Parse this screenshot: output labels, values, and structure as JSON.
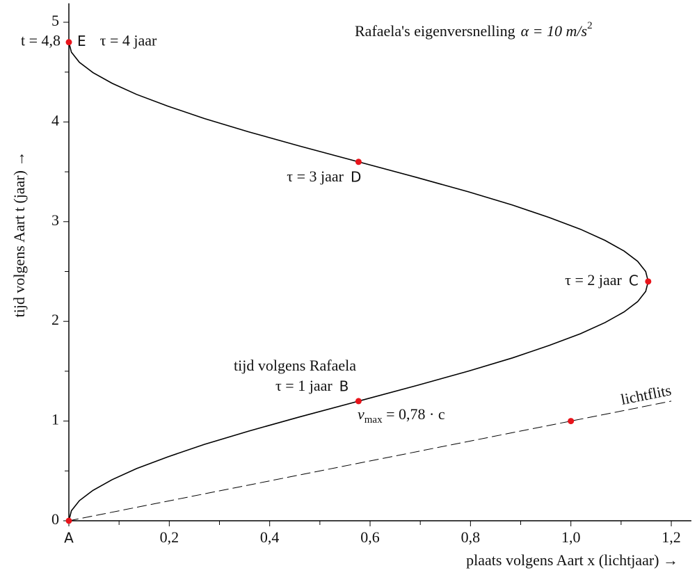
{
  "chart_data": {
    "type": "line",
    "title": "Rafaela's eigenversnelling",
    "title_math": "α = 10 m/s",
    "title_sup": "2",
    "x_label": "plaats volgens Aart  x  (lichtjaar) →",
    "y_label": "tijd volgens Aart  t  (jaar) →",
    "xlim": [
      0,
      1.24
    ],
    "ylim": [
      0,
      5.19
    ],
    "xticks": [
      {
        "value": 0,
        "label": "A"
      },
      {
        "value": 0.2,
        "label": "0,2"
      },
      {
        "value": 0.4,
        "label": "0,4"
      },
      {
        "value": 0.6,
        "label": "0,6"
      },
      {
        "value": 0.8,
        "label": "0,8"
      },
      {
        "value": 1.0,
        "label": "1,0"
      },
      {
        "value": 1.2,
        "label": "1,2"
      }
    ],
    "xminorticks": [
      0.1,
      0.3,
      0.5,
      0.7,
      0.9,
      1.1
    ],
    "yticks": [
      0,
      1,
      2,
      3,
      4,
      5
    ],
    "yminorticks": [
      0.5,
      1.5,
      2.5,
      3.5,
      4.5
    ],
    "series": [
      {
        "color": "#000000",
        "x": [
          0,
          0.005,
          0.021,
          0.048,
          0.086,
          0.135,
          0.197,
          0.27,
          0.358,
          0.46,
          0.577,
          0.694,
          0.796,
          0.884,
          0.957,
          1.019,
          1.068,
          1.106,
          1.133,
          1.149,
          1.154,
          1.149,
          1.133,
          1.106,
          1.068,
          1.019,
          0.957,
          0.884,
          0.796,
          0.694,
          0.577,
          0.46,
          0.358,
          0.27,
          0.197,
          0.135,
          0.086,
          0.048,
          0.021,
          0.005,
          0
        ],
        "values": [
          0,
          0.1,
          0.202,
          0.305,
          0.412,
          0.524,
          0.641,
          0.766,
          0.899,
          1.042,
          1.2,
          1.358,
          1.501,
          1.634,
          1.759,
          1.876,
          1.988,
          2.095,
          2.198,
          2.3,
          2.4,
          2.5,
          2.602,
          2.705,
          2.812,
          2.924,
          3.041,
          3.166,
          3.299,
          3.442,
          3.6,
          3.758,
          3.901,
          4.034,
          4.159,
          4.276,
          4.388,
          4.495,
          4.598,
          4.7,
          4.8
        ]
      },
      {
        "name": "lichtflits",
        "color": "#000000",
        "dashed": true,
        "x": [
          0,
          1.2
        ],
        "values": [
          0,
          1.2
        ]
      }
    ],
    "points": [
      {
        "x": 0,
        "y": 0
      },
      {
        "x": 0.577,
        "y": 1.2,
        "label": "B",
        "text": "τ = 1 jaar"
      },
      {
        "x": 1.154,
        "y": 2.4,
        "label": "C",
        "text": "τ = 2 jaar"
      },
      {
        "x": 0.577,
        "y": 3.6,
        "label": "D",
        "text": "τ = 3 jaar"
      },
      {
        "x": 0,
        "y": 4.8,
        "label": "E",
        "text": "τ = 4 jaar",
        "t_label": "t = 4,8"
      },
      {
        "x": 1,
        "y": 1
      }
    ],
    "point_color": "#e8141b",
    "annotation": "tijd volgens Rafaela",
    "vmax": {
      "symbol": "v",
      "subscript": "max",
      "text": " = 0,78 · c"
    }
  }
}
